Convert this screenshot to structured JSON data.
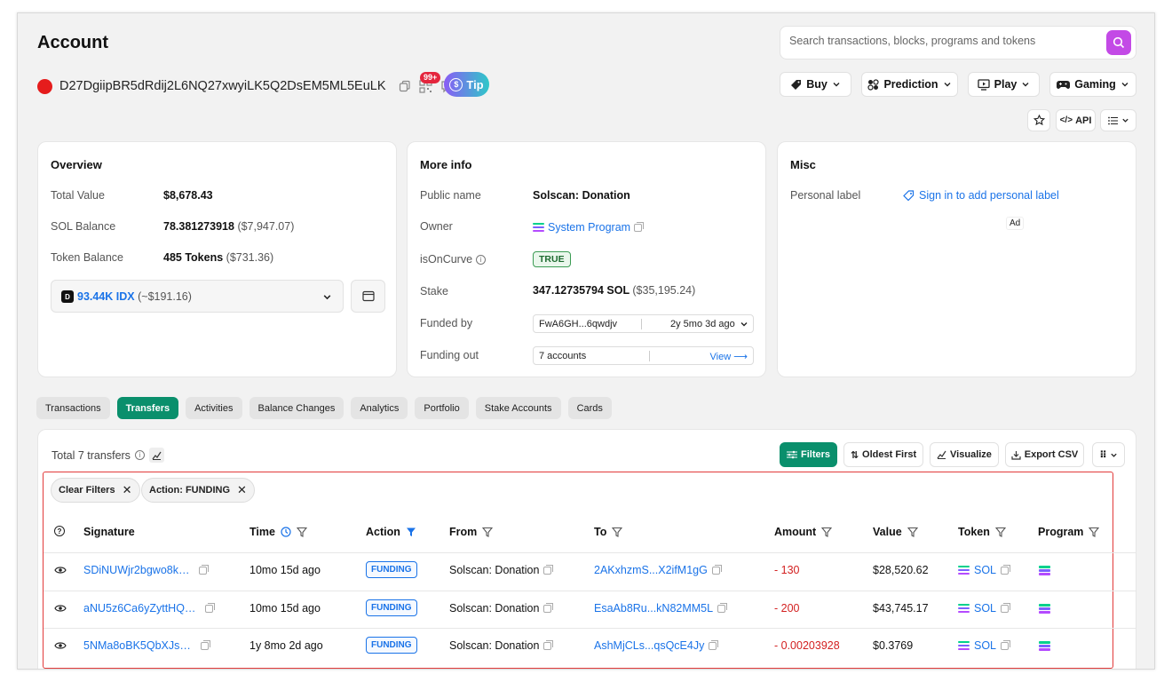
{
  "page": {
    "title": "Account"
  },
  "search": {
    "placeholder": "Search transactions, blocks, programs and tokens"
  },
  "account": {
    "address": "D27DgiipBR5dRdij2L6NQ27xwyiLK5Q2DsEM5ML5EuLK",
    "notifications": "99+",
    "tip_label": "Tip"
  },
  "header_menu": {
    "buy": "Buy",
    "prediction": "Prediction",
    "play": "Play",
    "gaming": "Gaming",
    "api": "API"
  },
  "overview": {
    "title": "Overview",
    "total_value_label": "Total Value",
    "total_value": "$8,678.43",
    "sol_balance_label": "SOL Balance",
    "sol_balance": "78.381273918",
    "sol_balance_usd": "($7,947.07)",
    "token_balance_label": "Token Balance",
    "token_balance": "485 Tokens",
    "token_balance_usd": "($731.36)",
    "token_select_amount": "93.44K IDX",
    "token_select_usd": "(~$191.16)"
  },
  "more_info": {
    "title": "More info",
    "public_name_label": "Public name",
    "public_name": "Solscan: Donation",
    "owner_label": "Owner",
    "owner": "System Program",
    "is_on_curve_label": "isOnCurve",
    "is_on_curve": "TRUE",
    "stake_label": "Stake",
    "stake": "347.12735794 SOL",
    "stake_usd": "($35,195.24)",
    "funded_by_label": "Funded by",
    "funded_by_addr": "FwA6GH...6qwdjv",
    "funded_by_age": "2y 5mo 3d ago",
    "funding_out_label": "Funding out",
    "funding_out_accounts": "7 accounts",
    "funding_out_view": "View ⟶"
  },
  "misc": {
    "title": "Misc",
    "personal_label_label": "Personal label",
    "personal_label_link": "Sign in to add personal label",
    "ad": "Ad"
  },
  "tabs": [
    "Transactions",
    "Transfers",
    "Activities",
    "Balance Changes",
    "Analytics",
    "Portfolio",
    "Stake Accounts",
    "Cards"
  ],
  "transfers": {
    "total": "Total 7 transfers",
    "filters": "Filters",
    "oldest_first": "Oldest First",
    "visualize": "Visualize",
    "export_csv": "Export CSV",
    "clear_filters": "Clear Filters",
    "action_filter": "Action: FUNDING",
    "columns": [
      "Signature",
      "Time",
      "Action",
      "From",
      "To",
      "Amount",
      "Value",
      "Token",
      "Program"
    ],
    "rows": [
      {
        "signature": "SDiNUWjr2bgwo8k…",
        "time": "10mo 15d ago",
        "action": "FUNDING",
        "from": "Solscan: Donation",
        "to": "2AKxhzmS...X2ifM1gG",
        "amount": "- 130",
        "value": "$28,520.62",
        "token": "SOL"
      },
      {
        "signature": "aNU5z6Ca6yZyttHQ…",
        "time": "10mo 15d ago",
        "action": "FUNDING",
        "from": "Solscan: Donation",
        "to": "EsaAb8Ru...kN82MM5L",
        "amount": "- 200",
        "value": "$43,745.17",
        "token": "SOL"
      },
      {
        "signature": "5NMa8oBK5QbXJs…",
        "time": "1y 8mo 2d ago",
        "action": "FUNDING",
        "from": "Solscan: Donation",
        "to": "AshMjCLs...qsQcE4Jy",
        "amount": "- 0.00203928",
        "value": "$0.3769",
        "token": "SOL"
      }
    ]
  },
  "colors": {
    "accent_green": "#0a8f6c",
    "link_blue": "#1a73e8",
    "negative_red": "#d32020",
    "highlight_red": "#e23a3a"
  }
}
